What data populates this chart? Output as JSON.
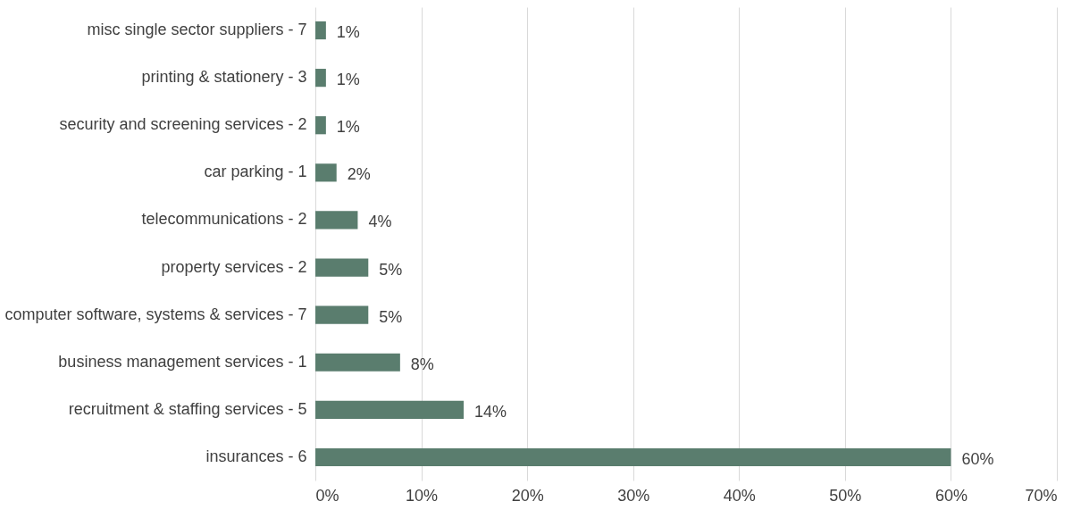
{
  "chart_data": {
    "type": "bar",
    "orientation": "horizontal",
    "categories": [
      "misc single sector suppliers - 7",
      "printing & stationery - 3",
      "security and screening services - 2",
      "car parking - 1",
      "telecommunications - 2",
      "property services - 2",
      "computer software, systems & services - 7",
      "business management services - 1",
      "recruitment & staffing services - 5",
      "insurances - 6"
    ],
    "values": [
      1,
      1,
      1,
      2,
      4,
      5,
      5,
      8,
      14,
      60
    ],
    "value_labels": [
      "1%",
      "1%",
      "1%",
      "2%",
      "4%",
      "5%",
      "5%",
      "8%",
      "14%",
      "60%"
    ],
    "color": "#5a7d6e",
    "xlim": [
      0,
      70
    ],
    "xticks": [
      {
        "value": 0,
        "label": "0%"
      },
      {
        "value": 10,
        "label": "10%"
      },
      {
        "value": 20,
        "label": "20%"
      },
      {
        "value": 30,
        "label": "30%"
      },
      {
        "value": 40,
        "label": "40%"
      },
      {
        "value": 50,
        "label": "50%"
      },
      {
        "value": 60,
        "label": "60%"
      },
      {
        "value": 70,
        "label": "70%"
      }
    ],
    "grid": "x"
  }
}
